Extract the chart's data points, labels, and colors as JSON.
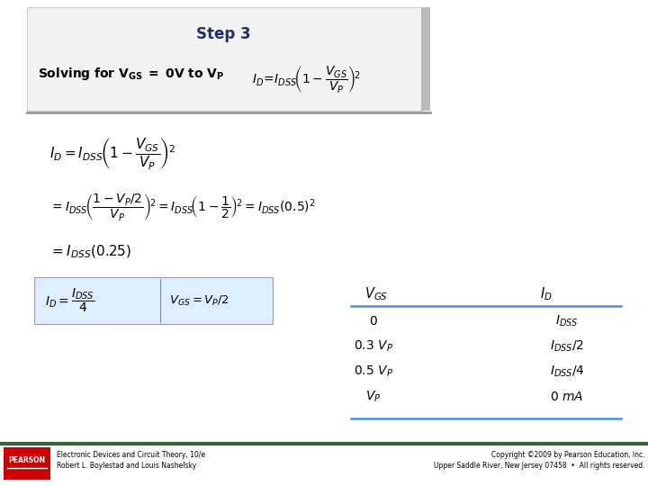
{
  "background_color": "#ffffff",
  "title_box_color": "#f2f2f2",
  "dark_blue": "#1f3264",
  "highlight_box_color": "#ddeeff",
  "accent_color": "#4a90d9",
  "gray_line_color": "#999999",
  "pearson_bg": "#cc0000",
  "footer_left1": "Electronic Devices and Circuit Theory, 10/e",
  "footer_left2": "Robert L. Boylestad and Louis Nashelsky",
  "footer_right1": "Copyright ©2009 by Pearson Education, Inc.",
  "footer_right2": "Upper Saddle River, New Jersey 07458  •  All rights reserved."
}
